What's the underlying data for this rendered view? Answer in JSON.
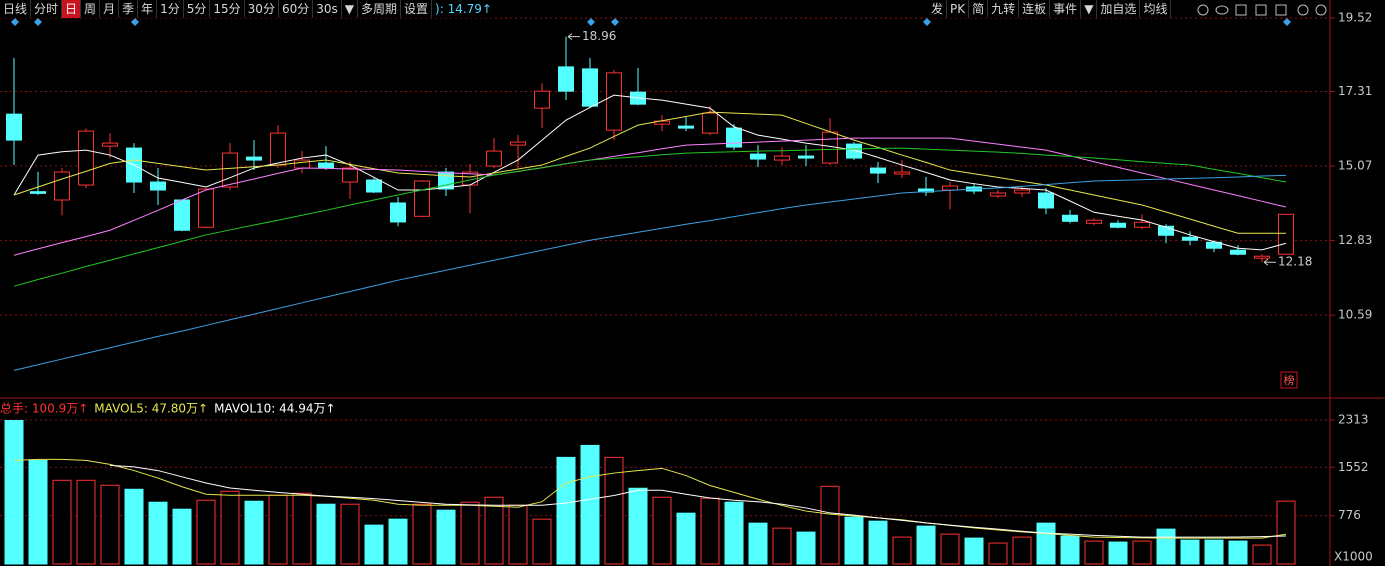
{
  "toolbar": {
    "left": [
      {
        "text": "日线"
      },
      {
        "text": "分时"
      },
      {
        "text": "日",
        "active": true
      },
      {
        "text": "周"
      },
      {
        "text": "月"
      },
      {
        "text": "季"
      },
      {
        "text": "年"
      },
      {
        "text": "1分"
      },
      {
        "text": "5分"
      },
      {
        "text": "15分"
      },
      {
        "text": "30分"
      },
      {
        "text": "60分"
      },
      {
        "text": "30s"
      },
      {
        "text": "▼"
      },
      {
        "text": "多周期"
      },
      {
        "text": "设置"
      }
    ],
    "indicator": "): 14.79↑",
    "right": [
      {
        "text": "发"
      },
      {
        "text": "PK"
      },
      {
        "text": "简"
      },
      {
        "text": "九转"
      },
      {
        "text": "连板"
      },
      {
        "text": "事件"
      },
      {
        "text": "▼"
      },
      {
        "text": "加自选"
      },
      {
        "text": "均线"
      }
    ]
  },
  "badge": "榜",
  "chart_data": [
    {
      "type": "candlestick",
      "up_color": "#ff3232",
      "down_color": "#54ffff",
      "ylim": [
        8.34,
        20.06
      ],
      "yticks": [
        19.52,
        17.31,
        15.07,
        12.83,
        10.59
      ],
      "grid": true,
      "open": [
        16.63,
        14.3,
        14.05,
        14.5,
        15.67,
        15.61,
        14.59,
        14.05,
        13.23,
        14.44,
        15.34,
        15.1,
        15.01,
        15.16,
        14.59,
        14.65,
        13.96,
        13.56,
        14.89,
        14.5,
        15.07,
        15.7,
        16.81,
        18.05,
        17.99,
        16.15,
        17.29,
        16.33,
        16.27,
        16.06,
        16.21,
        15.43,
        15.25,
        15.37,
        15.16,
        15.73,
        15.01,
        14.83,
        14.38,
        14.35,
        14.44,
        14.17,
        14.26,
        14.26,
        13.59,
        13.35,
        13.35,
        13.23,
        13.26,
        12.93,
        12.78,
        12.54,
        12.3,
        12.42
      ],
      "high": [
        18.32,
        14.9,
        15.01,
        16.2,
        16.06,
        15.76,
        15.01,
        14.05,
        14.4,
        15.76,
        15.85,
        16.3,
        15.52,
        15.67,
        15.19,
        14.71,
        14.14,
        14.65,
        15.01,
        15.13,
        15.91,
        16.0,
        17.56,
        18.96,
        18.32,
        17.96,
        18.02,
        16.6,
        16.54,
        16.87,
        16.33,
        15.7,
        15.64,
        15.7,
        16.51,
        15.79,
        15.19,
        15.25,
        14.74,
        14.59,
        14.56,
        14.35,
        14.44,
        14.41,
        13.75,
        13.5,
        13.44,
        13.62,
        13.32,
        13.11,
        12.84,
        12.69,
        12.42,
        13.62
      ],
      "low": [
        15.1,
        14.2,
        13.59,
        14.41,
        15.31,
        14.26,
        13.9,
        13.11,
        13.2,
        14.35,
        14.95,
        15.01,
        14.86,
        14.95,
        14.08,
        14.26,
        13.26,
        13.53,
        14.17,
        13.65,
        15.01,
        15.01,
        16.21,
        17.05,
        16.81,
        15.85,
        16.9,
        16.12,
        16.12,
        16.0,
        15.55,
        15.04,
        15.1,
        15.07,
        15.1,
        15.25,
        14.56,
        14.71,
        14.17,
        13.77,
        14.23,
        14.11,
        14.14,
        13.62,
        13.35,
        13.29,
        13.2,
        13.17,
        12.75,
        12.69,
        12.48,
        12.39,
        12.18,
        12.42
      ],
      "close": [
        15.85,
        14.25,
        14.89,
        16.12,
        15.76,
        14.59,
        14.35,
        13.14,
        14.38,
        15.46,
        15.25,
        16.06,
        15.25,
        15.01,
        15.01,
        14.29,
        13.39,
        14.62,
        14.38,
        14.89,
        15.52,
        15.79,
        17.32,
        17.32,
        16.87,
        17.87,
        16.93,
        16.42,
        16.21,
        16.66,
        15.64,
        15.28,
        15.37,
        15.31,
        16.09,
        15.31,
        14.86,
        14.89,
        14.29,
        14.47,
        14.32,
        14.26,
        14.35,
        13.81,
        13.41,
        13.44,
        13.23,
        13.38,
        12.99,
        12.84,
        12.6,
        12.42,
        12.36,
        13.62
      ],
      "series": [
        {
          "color": "#ffffff",
          "values": [
            14.2,
            15.4,
            15.5,
            15.55,
            15.4,
            15.1,
            14.71,
            14.58,
            14.44,
            14.72,
            15.01,
            15.16,
            15.31,
            15.4,
            15.1,
            14.73,
            14.35,
            14.35,
            14.42,
            14.5,
            14.88,
            15.25,
            15.85,
            16.45,
            16.83,
            17.2,
            17.12,
            17.05,
            16.93,
            16.81,
            16.25,
            16.0,
            15.88,
            15.76,
            15.66,
            15.55,
            15.33,
            15.1,
            14.88,
            14.65,
            14.54,
            14.44,
            14.4,
            14.35,
            14.02,
            13.68,
            13.56,
            13.45,
            13.23,
            13.0,
            12.8,
            12.6,
            12.55,
            12.75
          ]
        },
        {
          "color": "#e6e64c",
          "values": [
            14.2,
            14.44,
            14.68,
            14.91,
            15.15,
            15.25,
            15.15,
            15.05,
            14.95,
            15.0,
            15.05,
            15.1,
            15.18,
            15.25,
            15.12,
            14.99,
            14.86,
            14.82,
            14.78,
            14.74,
            14.86,
            14.98,
            15.1,
            15.36,
            15.61,
            15.96,
            16.3,
            16.43,
            16.56,
            16.69,
            16.66,
            16.63,
            16.6,
            16.35,
            16.1,
            15.85,
            15.63,
            15.4,
            15.18,
            14.95,
            14.84,
            14.73,
            14.61,
            14.5,
            14.35,
            14.2,
            14.05,
            13.9,
            13.69,
            13.48,
            13.26,
            13.05,
            13.05,
            13.05
          ]
        },
        {
          "color": "#ff80ff",
          "values": [
            12.39,
            12.58,
            12.77,
            12.95,
            13.14,
            13.44,
            13.74,
            14.05,
            14.35,
            14.52,
            14.68,
            14.85,
            15.01,
            15.0,
            14.98,
            14.97,
            14.95,
            14.91,
            14.87,
            14.84,
            14.8,
            14.91,
            15.02,
            15.14,
            15.25,
            15.36,
            15.47,
            15.59,
            15.7,
            15.73,
            15.76,
            15.79,
            15.82,
            15.85,
            15.88,
            15.91,
            15.91,
            15.91,
            15.91,
            15.91,
            15.82,
            15.73,
            15.64,
            15.55,
            15.38,
            15.2,
            15.03,
            14.86,
            14.69,
            14.52,
            14.35,
            14.18,
            14.01,
            13.84
          ]
        },
        {
          "color": "#22c822",
          "values": [
            11.46,
            11.66,
            11.85,
            12.05,
            12.24,
            12.43,
            12.62,
            12.81,
            13.0,
            13.15,
            13.3,
            13.44,
            13.59,
            13.74,
            13.9,
            14.05,
            14.2,
            14.35,
            14.5,
            14.65,
            14.8,
            14.91,
            15.02,
            15.14,
            15.25,
            15.3,
            15.35,
            15.41,
            15.46,
            15.48,
            15.5,
            15.52,
            15.53,
            15.55,
            15.57,
            15.58,
            15.6,
            15.61,
            15.58,
            15.55,
            15.52,
            15.49,
            15.45,
            15.4,
            15.36,
            15.31,
            15.26,
            15.2,
            15.15,
            15.1,
            14.97,
            14.85,
            14.72,
            14.59
          ]
        },
        {
          "color": "#3ca0e6",
          "values": [
            8.93,
            9.1,
            9.27,
            9.44,
            9.61,
            9.78,
            9.95,
            10.11,
            10.28,
            10.45,
            10.62,
            10.79,
            10.96,
            11.13,
            11.3,
            11.47,
            11.64,
            11.79,
            11.94,
            12.09,
            12.24,
            12.39,
            12.54,
            12.69,
            12.84,
            12.96,
            13.08,
            13.2,
            13.32,
            13.43,
            13.55,
            13.67,
            13.79,
            13.9,
            13.99,
            14.08,
            14.17,
            14.26,
            14.3,
            14.34,
            14.38,
            14.41,
            14.46,
            14.51,
            14.57,
            14.62,
            14.64,
            14.66,
            14.68,
            14.7,
            14.72,
            14.74,
            14.77,
            14.79
          ]
        }
      ]
    },
    {
      "type": "bar",
      "ylim": [
        0,
        2633
      ],
      "yticks": [
        2313,
        1552,
        776
      ],
      "grid": true,
      "unit_label": "X1000",
      "legend": [
        {
          "text": "总手: 100.9万↑",
          "color": "#ff3232"
        },
        {
          "text": "MAVOL5: 47.80万↑",
          "color": "#e6e64c"
        },
        {
          "text": "MAVOL10: 44.94万↑",
          "color": "#ffffff"
        }
      ],
      "values": [
        2304,
        1664,
        1344,
        1344,
        1264,
        1200,
        992,
        880,
        1024,
        1168,
        1008,
        1104,
        1136,
        960,
        960,
        624,
        720,
        960,
        864,
        992,
        1072,
        944,
        720,
        1712,
        1904,
        1712,
        1216,
        1072,
        816,
        1056,
        992,
        656,
        576,
        512,
        1248,
        752,
        688,
        432,
        608,
        480,
        416,
        336,
        432,
        656,
        448,
        368,
        352,
        368,
        560,
        384,
        384,
        368,
        304,
        1009
      ],
      "series": [
        {
          "color": "#e6e64c",
          "values": [
            1664,
            1680,
            1680,
            1664,
            1600,
            1500,
            1380,
            1240,
            1120,
            1104,
            1104,
            1104,
            1104,
            1088,
            1056,
            1024,
            960,
            944,
            944,
            944,
            928,
            912,
            1000,
            1300,
            1400,
            1460,
            1500,
            1536,
            1420,
            1260,
            1150,
            1040,
            940,
            850,
            800,
            770,
            740,
            710,
            660,
            620,
            580,
            545,
            515,
            490,
            460,
            432,
            425,
            420,
            416,
            416,
            416,
            416,
            416,
            478
          ]
        },
        {
          "color": "#ffffff",
          "values": [
            null,
            null,
            null,
            null,
            1584,
            1560,
            1500,
            1400,
            1300,
            1220,
            1184,
            1150,
            1120,
            1090,
            1072,
            1050,
            1020,
            990,
            960,
            950,
            944,
            944,
            944,
            980,
            1040,
            1100,
            1184,
            1184,
            1120,
            1060,
            1024,
            1000,
            960,
            900,
            820,
            784,
            740,
            700,
            660,
            624,
            590,
            560,
            525,
            496,
            480,
            460,
            445,
            432,
            432,
            432,
            432,
            434,
            440,
            449.4
          ]
        }
      ]
    }
  ]
}
